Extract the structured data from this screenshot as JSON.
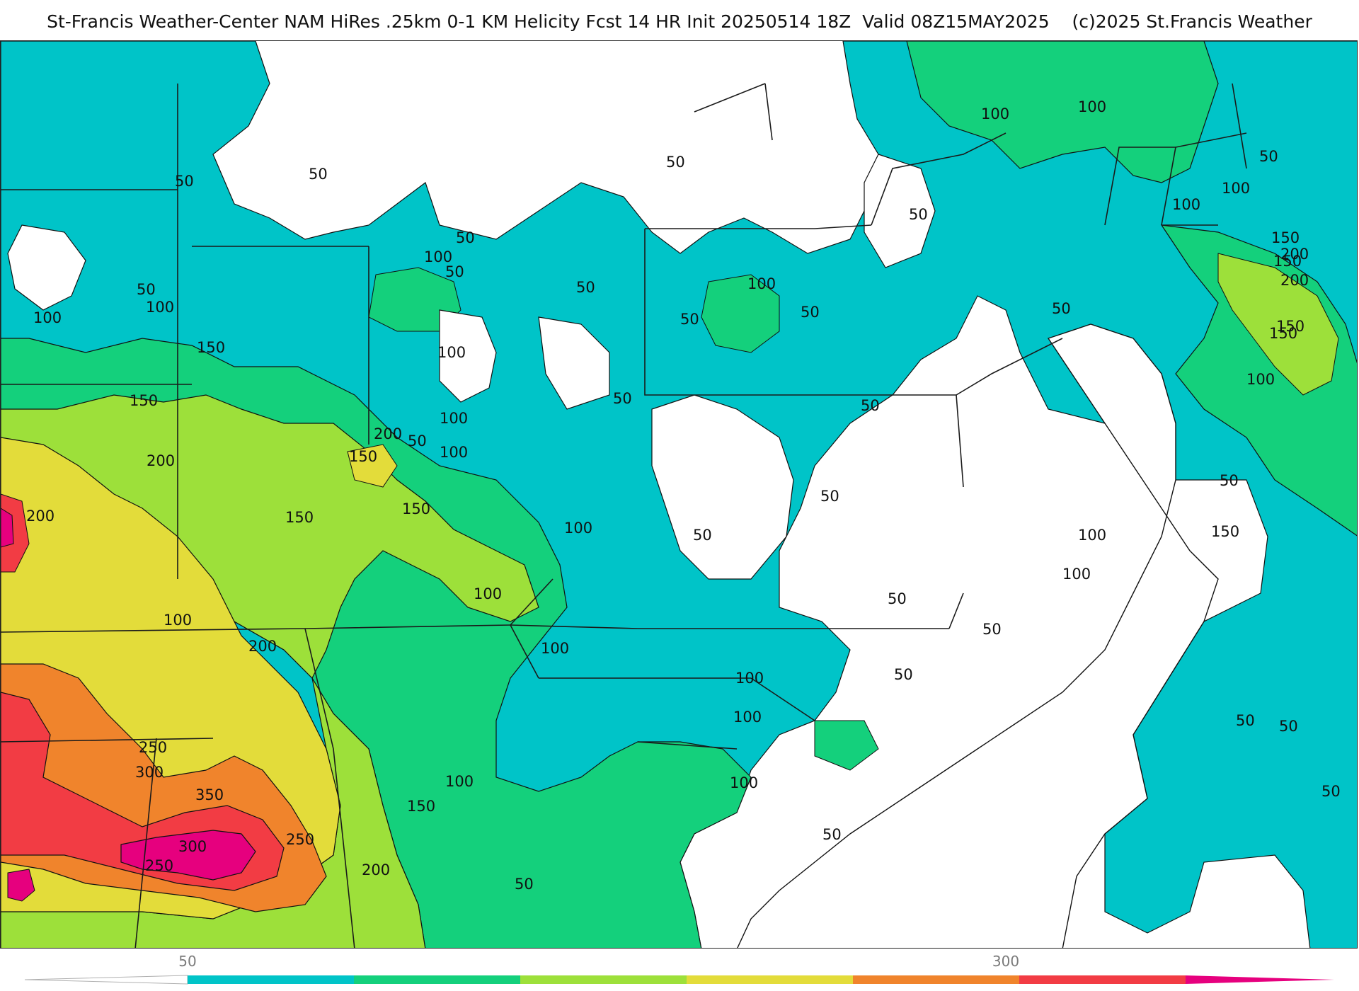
{
  "header": {
    "title": "St-Francis Weather-Center NAM HiRes .25km 0-1 KM Helicity Fcst 14 HR Init 20250514 18Z  Valid 08Z15MAY2025    (c)2025 St.Francis Weather"
  },
  "palette": {
    "bins": [
      {
        "from": 0,
        "to": 50,
        "color": "#ffffff"
      },
      {
        "from": 50,
        "to": 100,
        "color": "#00c4c8"
      },
      {
        "from": 100,
        "to": 150,
        "color": "#14d07c"
      },
      {
        "from": 150,
        "to": 200,
        "color": "#9de03a"
      },
      {
        "from": 200,
        "to": 250,
        "color": "#e3dc3a"
      },
      {
        "from": 250,
        "to": 300,
        "color": "#f0842c"
      },
      {
        "from": 300,
        "to": 350,
        "color": "#f23c44"
      },
      {
        "from": 350,
        "to": 400,
        "color": "#e6007e"
      }
    ],
    "borders": "#1a1a1a",
    "counties": "#9a9a9a"
  },
  "colorbar": {
    "tick_labels": [
      "50",
      "300"
    ],
    "tick_values": [
      50,
      300
    ]
  },
  "contour_labels": [
    "100",
    "100",
    "50",
    "50",
    "50",
    "50",
    "100",
    "50",
    "100",
    "50",
    "50",
    "50",
    "100",
    "100",
    "50",
    "100",
    "150",
    "50",
    "150",
    "100",
    "200",
    "50",
    "100",
    "150",
    "200",
    "150",
    "150",
    "50",
    "150",
    "100",
    "200",
    "200",
    "150",
    "100",
    "100",
    "50",
    "50",
    "200",
    "50",
    "150",
    "50",
    "50",
    "150",
    "100",
    "50",
    "100",
    "100",
    "100",
    "100",
    "50",
    "250",
    "300",
    "350",
    "300",
    "250",
    "250",
    "150",
    "200",
    "100",
    "50",
    "100",
    "50",
    "50",
    "50",
    "100",
    "100",
    "100",
    "150",
    "200",
    "50",
    "50",
    "50"
  ]
}
